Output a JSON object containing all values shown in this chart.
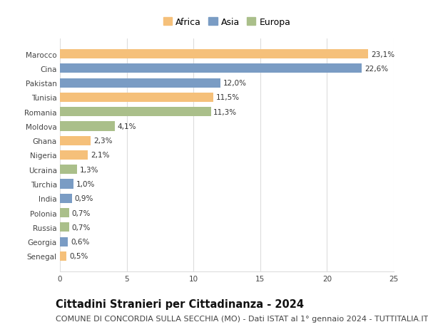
{
  "countries": [
    "Marocco",
    "Cina",
    "Pakistan",
    "Tunisia",
    "Romania",
    "Moldova",
    "Ghana",
    "Nigeria",
    "Ucraina",
    "Turchia",
    "India",
    "Polonia",
    "Russia",
    "Georgia",
    "Senegal"
  ],
  "values": [
    23.1,
    22.6,
    12.0,
    11.5,
    11.3,
    4.1,
    2.3,
    2.1,
    1.3,
    1.0,
    0.9,
    0.7,
    0.7,
    0.6,
    0.5
  ],
  "labels": [
    "23,1%",
    "22,6%",
    "12,0%",
    "11,5%",
    "11,3%",
    "4,1%",
    "2,3%",
    "2,1%",
    "1,3%",
    "1,0%",
    "0,9%",
    "0,7%",
    "0,7%",
    "0,6%",
    "0,5%"
  ],
  "continents": [
    "Africa",
    "Asia",
    "Asia",
    "Africa",
    "Europa",
    "Europa",
    "Africa",
    "Africa",
    "Europa",
    "Asia",
    "Asia",
    "Europa",
    "Europa",
    "Asia",
    "Africa"
  ],
  "colors": {
    "Africa": "#F5C07A",
    "Asia": "#7A9CC4",
    "Europa": "#AABF8A"
  },
  "legend_order": [
    "Africa",
    "Asia",
    "Europa"
  ],
  "xlim": [
    0,
    25
  ],
  "xticks": [
    0,
    5,
    10,
    15,
    20,
    25
  ],
  "title": "Cittadini Stranieri per Cittadinanza - 2024",
  "subtitle": "COMUNE DI CONCORDIA SULLA SECCHIA (MO) - Dati ISTAT al 1° gennaio 2024 - TUTTITALIA.IT",
  "title_fontsize": 10.5,
  "subtitle_fontsize": 8,
  "label_fontsize": 7.5,
  "tick_fontsize": 7.5,
  "legend_fontsize": 9,
  "background_color": "#ffffff",
  "grid_color": "#dddddd",
  "bar_height": 0.65
}
